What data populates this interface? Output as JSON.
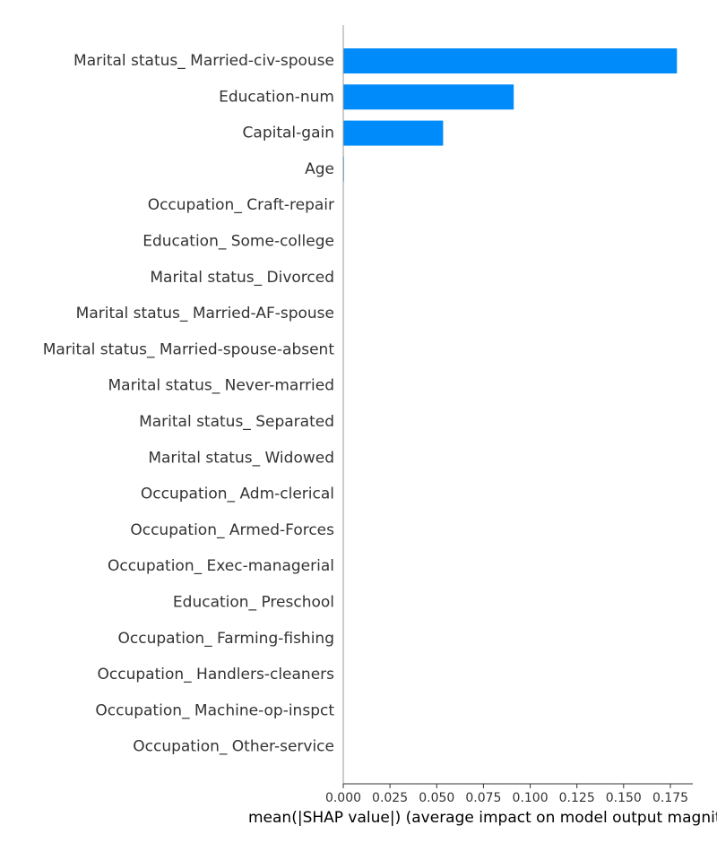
{
  "chart_data": {
    "type": "bar",
    "orientation": "horizontal",
    "categories": [
      "Marital status_ Married-civ-spouse",
      "Education-num",
      "Capital-gain",
      "Age",
      "Occupation_ Craft-repair",
      "Education_ Some-college",
      "Marital status_ Divorced",
      "Marital status_ Married-AF-spouse",
      "Marital status_ Married-spouse-absent",
      "Marital status_ Never-married",
      "Marital status_ Separated",
      "Marital status_ Widowed",
      "Occupation_ Adm-clerical",
      "Occupation_ Armed-Forces",
      "Occupation_ Exec-managerial",
      "Education_ Preschool",
      "Occupation_ Farming-fishing",
      "Occupation_ Handlers-cleaners",
      "Occupation_ Machine-op-inspct",
      "Occupation_ Other-service"
    ],
    "values": [
      0.1785,
      0.0912,
      0.0534,
      0.0004,
      0,
      0,
      0,
      0,
      0,
      0,
      0,
      0,
      0,
      0,
      0,
      0,
      0,
      0,
      0,
      0
    ],
    "xlabel": "mean(|SHAP value|) (average impact on model output magnitude)",
    "xlim": [
      0,
      0.187
    ],
    "xticks": [
      0.0,
      0.025,
      0.05,
      0.075,
      0.1,
      0.125,
      0.15,
      0.175
    ],
    "xtick_labels": [
      "0.000",
      "0.025",
      "0.050",
      "0.075",
      "0.100",
      "0.125",
      "0.150",
      "0.175"
    ],
    "bar_color": "#008bfb",
    "grid": false
  }
}
